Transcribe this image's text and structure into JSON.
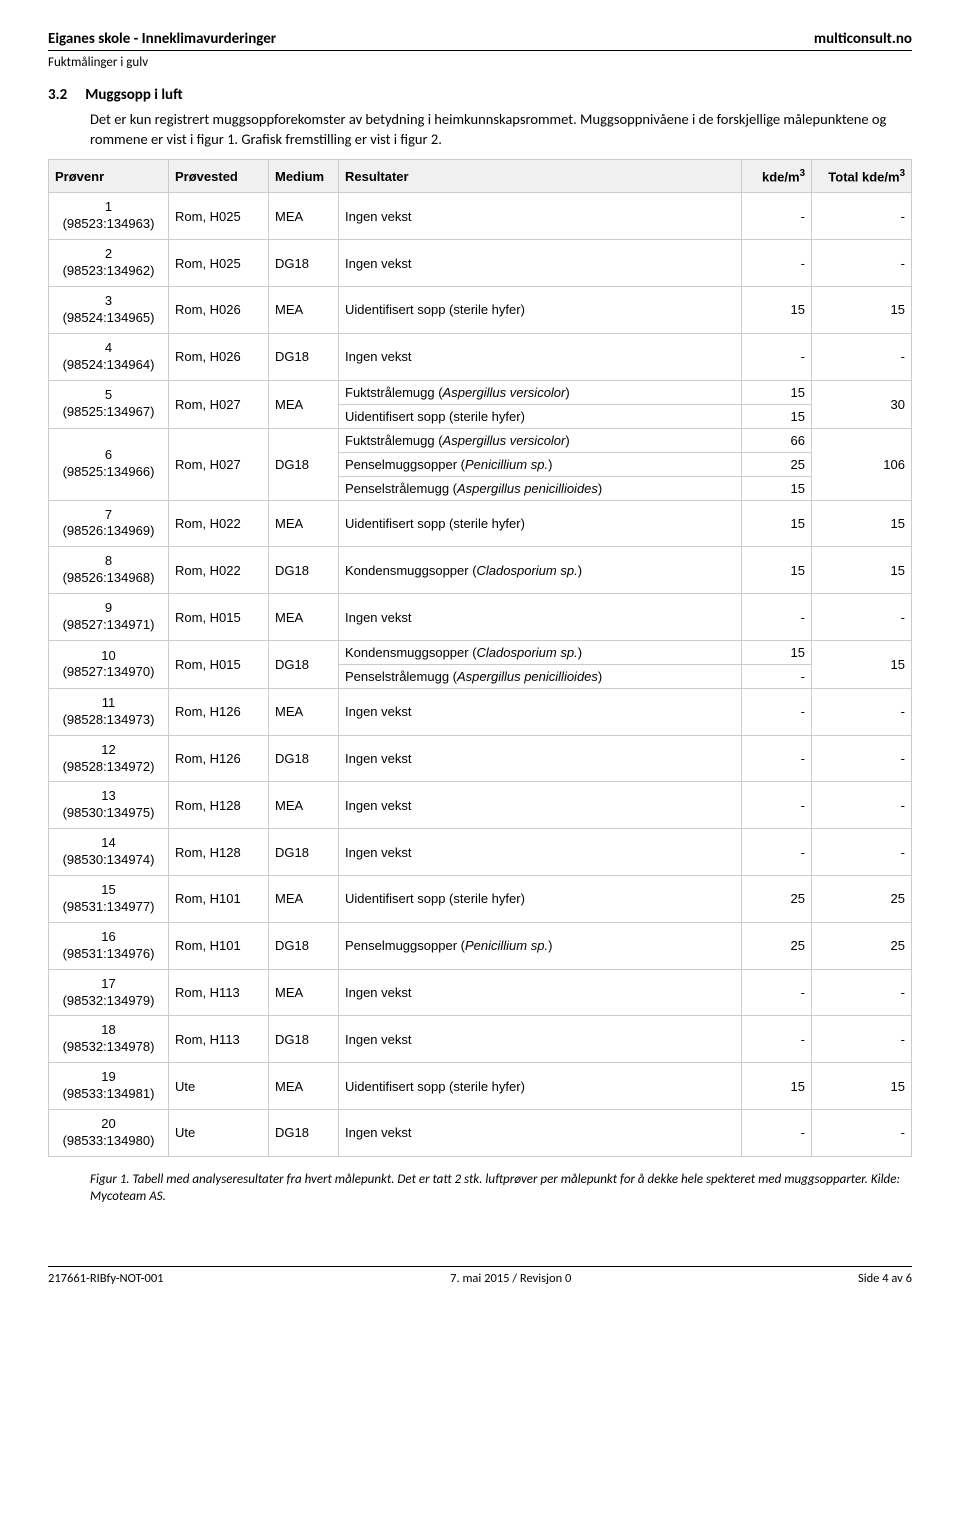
{
  "header": {
    "title": "Eiganes skole - Inneklimavurderinger",
    "site": "multiconsult.no",
    "subtitle": "Fuktmålinger i gulv"
  },
  "section": {
    "number": "3.2",
    "title": "Muggsopp i luft",
    "para1": "Det er kun registrert muggsoppforekomster av betydning i heimkunnskapsrommet. Muggsoppnivåene i de forskjellige målepunktene og rommene er vist i figur 1. Grafisk fremstilling er vist i figur 2."
  },
  "table": {
    "headers": {
      "prnr": "Prøvenr",
      "prsted": "Prøvested",
      "medium": "Medium",
      "result": "Resultater",
      "kde": "kde/m",
      "total": "Total kde/m"
    },
    "rows": [
      {
        "n": "1",
        "sid": "(98523:134963)",
        "sted": "Rom, H025",
        "med": "MEA",
        "res": [
          {
            "t": "Ingen vekst",
            "v": "-"
          }
        ],
        "tot": "-"
      },
      {
        "n": "2",
        "sid": "(98523:134962)",
        "sted": "Rom, H025",
        "med": "DG18",
        "res": [
          {
            "t": "Ingen vekst",
            "v": "-"
          }
        ],
        "tot": "-"
      },
      {
        "n": "3",
        "sid": "(98524:134965)",
        "sted": "Rom, H026",
        "med": "MEA",
        "res": [
          {
            "t": "Uidentifisert sopp (sterile hyfer)",
            "v": "15"
          }
        ],
        "tot": "15"
      },
      {
        "n": "4",
        "sid": "(98524:134964)",
        "sted": "Rom, H026",
        "med": "DG18",
        "res": [
          {
            "t": "Ingen vekst",
            "v": "-"
          }
        ],
        "tot": "-"
      },
      {
        "n": "5",
        "sid": "(98525:134967)",
        "sted": "Rom, H027",
        "med": "MEA",
        "res": [
          {
            "t": "Fuktstrålemugg (<i>Aspergillus versicolor</i>)",
            "v": "15"
          },
          {
            "t": "Uidentifisert sopp (sterile hyfer)",
            "v": "15"
          }
        ],
        "tot": "30"
      },
      {
        "n": "6",
        "sid": "(98525:134966)",
        "sted": "Rom, H027",
        "med": "DG18",
        "res": [
          {
            "t": "Fuktstrålemugg (<i>Aspergillus versicolor</i>)",
            "v": "66"
          },
          {
            "t": "Penselmuggsopper (<i>Penicillium sp.</i>)",
            "v": "25"
          },
          {
            "t": "Penselstrålemugg (<i>Aspergillus penicillioides</i>)",
            "v": "15"
          }
        ],
        "tot": "106"
      },
      {
        "n": "7",
        "sid": "(98526:134969)",
        "sted": "Rom, H022",
        "med": "MEA",
        "res": [
          {
            "t": "Uidentifisert sopp (sterile hyfer)",
            "v": "15"
          }
        ],
        "tot": "15"
      },
      {
        "n": "8",
        "sid": "(98526:134968)",
        "sted": "Rom, H022",
        "med": "DG18",
        "res": [
          {
            "t": "Kondensmuggsopper (<i>Cladosporium sp.</i>)",
            "v": "15"
          }
        ],
        "tot": "15"
      },
      {
        "n": "9",
        "sid": "(98527:134971)",
        "sted": "Rom, H015",
        "med": "MEA",
        "res": [
          {
            "t": "Ingen vekst",
            "v": "-"
          }
        ],
        "tot": "-"
      },
      {
        "n": "10",
        "sid": "(98527:134970)",
        "sted": "Rom, H015",
        "med": "DG18",
        "res": [
          {
            "t": "Kondensmuggsopper (<i>Cladosporium sp.</i>)",
            "v": "15"
          },
          {
            "t": "Penselstrålemugg (<i>Aspergillus penicillioides</i>)",
            "v": "-"
          }
        ],
        "tot": "15"
      },
      {
        "n": "11",
        "sid": "(98528:134973)",
        "sted": "Rom, H126",
        "med": "MEA",
        "res": [
          {
            "t": "Ingen vekst",
            "v": "-"
          }
        ],
        "tot": "-"
      },
      {
        "n": "12",
        "sid": "(98528:134972)",
        "sted": "Rom, H126",
        "med": "DG18",
        "res": [
          {
            "t": "Ingen vekst",
            "v": "-"
          }
        ],
        "tot": "-"
      },
      {
        "n": "13",
        "sid": "(98530:134975)",
        "sted": "Rom, H128",
        "med": "MEA",
        "res": [
          {
            "t": "Ingen vekst",
            "v": "-"
          }
        ],
        "tot": "-"
      },
      {
        "n": "14",
        "sid": "(98530:134974)",
        "sted": "Rom, H128",
        "med": "DG18",
        "res": [
          {
            "t": "Ingen vekst",
            "v": "-"
          }
        ],
        "tot": "-"
      },
      {
        "n": "15",
        "sid": "(98531:134977)",
        "sted": "Rom, H101",
        "med": "MEA",
        "res": [
          {
            "t": "Uidentifisert sopp (sterile hyfer)",
            "v": "25"
          }
        ],
        "tot": "25"
      },
      {
        "n": "16",
        "sid": "(98531:134976)",
        "sted": "Rom, H101",
        "med": "DG18",
        "res": [
          {
            "t": "Penselmuggsopper (<i>Penicillium sp.</i>)",
            "v": "25"
          }
        ],
        "tot": "25"
      },
      {
        "n": "17",
        "sid": "(98532:134979)",
        "sted": "Rom, H113",
        "med": "MEA",
        "res": [
          {
            "t": "Ingen vekst",
            "v": "-"
          }
        ],
        "tot": "-"
      },
      {
        "n": "18",
        "sid": "(98532:134978)",
        "sted": "Rom, H113",
        "med": "DG18",
        "res": [
          {
            "t": "Ingen vekst",
            "v": "-"
          }
        ],
        "tot": "-"
      },
      {
        "n": "19",
        "sid": "(98533:134981)",
        "sted": "Ute",
        "med": "MEA",
        "res": [
          {
            "t": "Uidentifisert sopp (sterile hyfer)",
            "v": "15"
          }
        ],
        "tot": "15"
      },
      {
        "n": "20",
        "sid": "(98533:134980)",
        "sted": "Ute",
        "med": "DG18",
        "res": [
          {
            "t": "Ingen vekst",
            "v": "-"
          }
        ],
        "tot": "-"
      }
    ]
  },
  "caption": "Figur 1. Tabell med analyseresultater fra hvert målepunkt. Det er tatt 2 stk. luftprøver per målepunkt for å dekke hele spekteret med muggsopparter. Kilde: Mycoteam AS.",
  "footer": {
    "left": "217661-RIBfy-NOT-001",
    "center": "7. mai 2015 / Revisjon 0",
    "right": "Side 4 av 6"
  }
}
